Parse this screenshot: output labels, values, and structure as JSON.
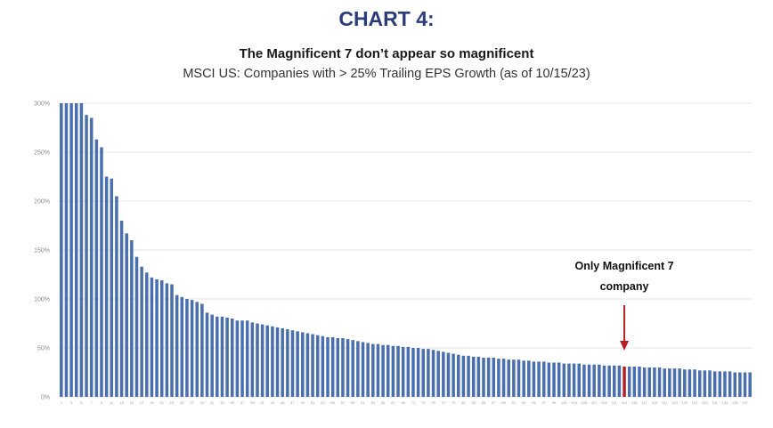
{
  "header": {
    "chart_label": "CHART 4:",
    "title": "The Magnificent 7 don’t appear so magnificent",
    "subtitle": "MSCI US: Companies with > 25% Trailing EPS Growth (as of 10/15/23)"
  },
  "colors": {
    "bar": "#4a6fae",
    "highlight": "#b51f24",
    "arrow": "#b51f24",
    "grid": "#e6e6e6",
    "title": "#2a3d78"
  },
  "chart_data": {
    "type": "bar",
    "title": "The Magnificent 7 don’t appear so magnificent",
    "subtitle": "MSCI US: Companies with > 25% Trailing EPS Growth (as of 10/15/23)",
    "xlabel": "",
    "ylabel": "",
    "ylim": [
      0,
      300
    ],
    "y_ticks": [
      0,
      50,
      100,
      150,
      200,
      250,
      300
    ],
    "y_tick_labels": [
      "0%",
      "50%",
      "100%",
      "150%",
      "200%",
      "250%",
      "300%"
    ],
    "grid": true,
    "series": [
      {
        "name": "Trailing EPS Growth (%)",
        "values": [
          300,
          300,
          300,
          300,
          300,
          288,
          285,
          263,
          255,
          225,
          223,
          205,
          180,
          167,
          160,
          143,
          133,
          127,
          122,
          120,
          119,
          116,
          115,
          104,
          102,
          100,
          99,
          97,
          95,
          86,
          84,
          82,
          82,
          81,
          80,
          78,
          78,
          78,
          76,
          75,
          74,
          73,
          72,
          71,
          70,
          69,
          68,
          67,
          66,
          65,
          64,
          63,
          62,
          61,
          61,
          60,
          60,
          59,
          58,
          57,
          56,
          55,
          54,
          54,
          53,
          53,
          52,
          52,
          51,
          51,
          50,
          50,
          49,
          49,
          48,
          47,
          46,
          45,
          44,
          43,
          42,
          42,
          41,
          41,
          40,
          40,
          40,
          39,
          39,
          38,
          38,
          38,
          37,
          37,
          36,
          36,
          36,
          35,
          35,
          35,
          34,
          34,
          34,
          34,
          33,
          33,
          33,
          33,
          32,
          32,
          32,
          32,
          31,
          31,
          31,
          31,
          30,
          30,
          30,
          30,
          29,
          29,
          29,
          29,
          28,
          28,
          28,
          27,
          27,
          27,
          26,
          26,
          26,
          26,
          25,
          25,
          25,
          25
        ]
      }
    ],
    "categories": [
      "1",
      "2",
      "3",
      "4",
      "5",
      "6",
      "7",
      "8",
      "9",
      "10",
      "11",
      "12",
      "13",
      "14",
      "15",
      "16",
      "17",
      "18",
      "19",
      "20",
      "21",
      "22",
      "23",
      "24",
      "25",
      "26",
      "27",
      "28",
      "29",
      "30",
      "31",
      "32",
      "33",
      "34",
      "35",
      "36",
      "37",
      "38",
      "39",
      "40",
      "41",
      "42",
      "43",
      "44",
      "45",
      "46",
      "47",
      "48",
      "49",
      "50",
      "51",
      "52",
      "53",
      "54",
      "55",
      "56",
      "57",
      "58",
      "59",
      "60",
      "61",
      "62",
      "63",
      "64",
      "65",
      "66",
      "67",
      "68",
      "69",
      "70",
      "71",
      "72",
      "73",
      "74",
      "75",
      "76",
      "77",
      "78",
      "79",
      "80",
      "81",
      "82",
      "83",
      "84",
      "85",
      "86",
      "87",
      "88",
      "89",
      "90",
      "91",
      "92",
      "93",
      "94",
      "95",
      "96",
      "97",
      "98",
      "99",
      "100",
      "101",
      "102",
      "103",
      "104",
      "105",
      "106",
      "107",
      "108",
      "109",
      "110",
      "111",
      "112",
      "113",
      "114",
      "115",
      "116",
      "117",
      "118",
      "119",
      "120",
      "121",
      "122",
      "123",
      "124",
      "125",
      "126",
      "127",
      "128",
      "129",
      "130",
      "131",
      "132",
      "133",
      "134",
      "135",
      "136",
      "137",
      "138"
    ],
    "highlight_index": 112,
    "annotations": [
      {
        "text_line1": "Only Magnificent 7",
        "text_line2": "company",
        "points_to_index": 112
      }
    ]
  }
}
